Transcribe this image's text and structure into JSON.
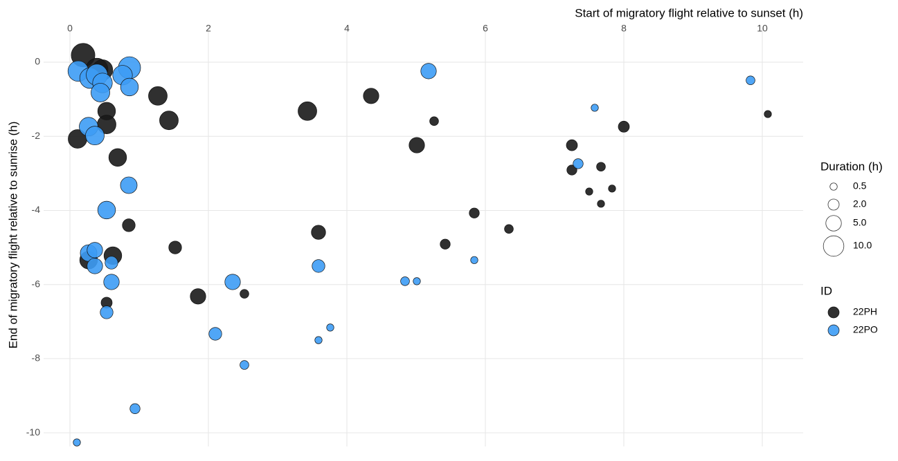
{
  "chart_data": {
    "type": "scatter",
    "x_label": "Start of migratory flight relative to sunset (h)",
    "y_label": "End of migratory flight relative to sunrise (h)",
    "xlim": [
      -0.38,
      10.59
    ],
    "ylim": [
      -10.37,
      0.97
    ],
    "xticks": [
      0,
      2,
      4,
      6,
      8,
      10
    ],
    "yticks": [
      -10,
      -8,
      -6,
      -4,
      -2,
      0
    ],
    "grid": true,
    "size_legend": {
      "title": "Duration (h)",
      "values": [
        {
          "value": 0.5,
          "label": "0.5"
        },
        {
          "value": 2,
          "label": "2.0"
        },
        {
          "value": 5,
          "label": "5.0"
        },
        {
          "value": 10,
          "label": "10.0"
        }
      ]
    },
    "color_legend_title": "ID",
    "series": [
      {
        "name": "22PH",
        "color": "#1a1a1a",
        "x": [
          0.19,
          0.39,
          0.47,
          1.27,
          0.53,
          0.53,
          1.43,
          0.11,
          0.69,
          0.85,
          0.62,
          0.27,
          1.52,
          0.53,
          1.85,
          2.52,
          3.43,
          4.35,
          5.26,
          5.01,
          3.59,
          5.42,
          5.84,
          6.34,
          7.25,
          7.25,
          7.67,
          8.0,
          7.5,
          7.83,
          7.67,
          10.08
        ],
        "values": [
          0.19,
          -0.19,
          -0.21,
          -0.91,
          -1.32,
          -1.68,
          -1.57,
          -2.07,
          -2.57,
          -4.4,
          -5.22,
          -5.34,
          -5.0,
          -6.49,
          -6.32,
          -6.25,
          -1.32,
          -0.91,
          -1.59,
          -2.24,
          -4.59,
          -4.91,
          -4.07,
          -4.5,
          -2.24,
          -2.91,
          -2.82,
          -1.74,
          -3.49,
          -3.41,
          -3.82,
          -1.4
        ],
        "sizes": [
          14,
          12,
          10,
          8,
          7,
          8,
          8,
          8,
          7,
          3,
          7,
          7,
          3,
          2,
          5,
          1,
          8,
          5,
          1,
          5,
          4,
          1.5,
          1.5,
          1,
          2,
          1.5,
          1,
          2,
          0.5,
          0.5,
          0.5,
          0.5
        ]
      },
      {
        "name": "22PO",
        "color": "#3d9cf5",
        "x": [
          0.12,
          0.86,
          0.76,
          0.29,
          0.39,
          0.47,
          0.86,
          0.44,
          0.27,
          0.36,
          0.85,
          0.53,
          0.27,
          0.36,
          0.36,
          0.6,
          0.6,
          0.53,
          2.35,
          2.1,
          2.52,
          0.94,
          0.1,
          5.18,
          3.59,
          3.76,
          3.59,
          4.84,
          5.01,
          5.84,
          7.34,
          7.58,
          9.83
        ],
        "values": [
          -0.24,
          -0.15,
          -0.35,
          -0.43,
          -0.34,
          -0.56,
          -0.67,
          -0.82,
          -1.74,
          -1.98,
          -3.32,
          -3.99,
          -5.15,
          -5.07,
          -5.5,
          -5.41,
          -5.93,
          -6.75,
          -5.93,
          -7.33,
          -8.17,
          -9.35,
          -10.26,
          -0.24,
          -5.5,
          -7.16,
          -7.5,
          -5.91,
          -5.91,
          -5.34,
          -2.74,
          -1.23,
          -0.49
        ],
        "sizes": [
          10,
          12,
          9,
          10,
          11,
          9,
          7,
          8,
          8,
          8,
          6,
          7,
          6,
          5,
          5,
          3,
          5,
          3,
          5,
          3,
          1,
          1.5,
          0.5,
          5,
          3,
          0.5,
          0.5,
          1,
          0.5,
          0.5,
          1.5,
          0.5,
          1
        ]
      }
    ]
  }
}
